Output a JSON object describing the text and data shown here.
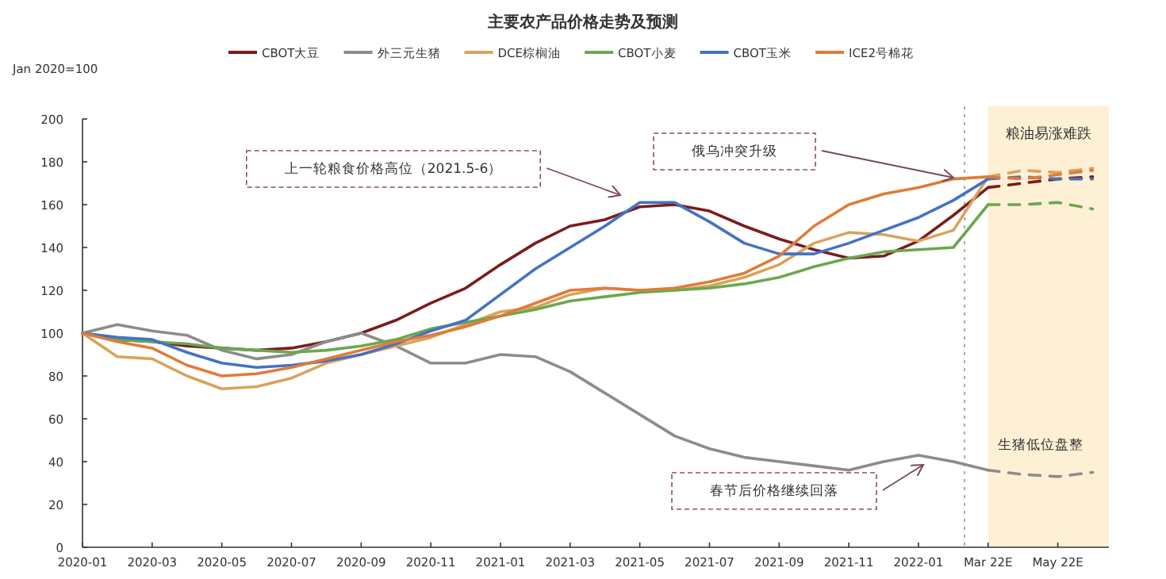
{
  "chart_data": {
    "type": "line",
    "title": "主要农产品价格走势及预测",
    "ylabel": "Jan 2020=100",
    "x": [
      "2020-01",
      "2020-02",
      "2020-03",
      "2020-04",
      "2020-05",
      "2020-06",
      "2020-07",
      "2020-08",
      "2020-09",
      "2020-10",
      "2020-11",
      "2020-12",
      "2021-01",
      "2021-02",
      "2021-03",
      "2021-04",
      "2021-05",
      "2021-06",
      "2021-07",
      "2021-08",
      "2021-09",
      "2021-10",
      "2021-11",
      "2021-12",
      "2022-01",
      "2022-02",
      "2022-03"
    ],
    "series": [
      {
        "name": "CBOT大豆",
        "color": "#7b1c1c",
        "values": [
          100,
          97,
          96,
          94,
          93,
          92,
          93,
          96,
          100,
          106,
          114,
          121,
          132,
          142,
          150,
          153,
          159,
          160,
          157,
          150,
          144,
          139,
          135,
          136,
          143,
          155,
          168
        ]
      },
      {
        "name": "外三元生猪",
        "color": "#8c8c8c",
        "values": [
          100,
          104,
          101,
          99,
          92,
          88,
          90,
          96,
          100,
          94,
          86,
          86,
          90,
          89,
          82,
          72,
          62,
          52,
          46,
          42,
          40,
          38,
          36,
          40,
          43,
          40,
          36
        ]
      },
      {
        "name": "DCE棕榈油",
        "color": "#d9a35a",
        "values": [
          100,
          89,
          88,
          80,
          74,
          75,
          79,
          86,
          90,
          94,
          98,
          104,
          110,
          112,
          118,
          121,
          120,
          120,
          122,
          126,
          132,
          142,
          147,
          146,
          143,
          148,
          173
        ]
      },
      {
        "name": "CBOT小麦",
        "color": "#6aa84f",
        "values": [
          100,
          97,
          96,
          95,
          93,
          92,
          91,
          92,
          94,
          97,
          102,
          105,
          108,
          111,
          115,
          117,
          119,
          120,
          121,
          123,
          126,
          131,
          135,
          138,
          139,
          140,
          160
        ]
      },
      {
        "name": "CBOT玉米",
        "color": "#4472c4",
        "values": [
          100,
          98,
          97,
          91,
          86,
          84,
          85,
          87,
          90,
          95,
          101,
          106,
          118,
          130,
          140,
          150,
          161,
          161,
          152,
          142,
          137,
          137,
          142,
          148,
          154,
          162,
          172
        ]
      },
      {
        "name": "ICE2号棉花",
        "color": "#e07b39",
        "values": [
          100,
          96,
          93,
          85,
          80,
          81,
          84,
          88,
          92,
          96,
          99,
          103,
          108,
          114,
          120,
          121,
          120,
          121,
          124,
          128,
          136,
          150,
          160,
          165,
          168,
          172,
          173
        ]
      },
      {
        "color": "#7b1c1c",
        "line_style": "dashed",
        "x": [
          "2022-03",
          "2022-04",
          "2022-05",
          "2022-06"
        ],
        "values": [
          168,
          170,
          172,
          173
        ]
      },
      {
        "color": "#8c8c8c",
        "line_style": "dashed",
        "x": [
          "2022-03",
          "2022-04",
          "2022-05",
          "2022-06"
        ],
        "values": [
          36,
          34,
          33,
          35
        ]
      },
      {
        "color": "#d9a35a",
        "line_style": "dashed",
        "x": [
          "2022-03",
          "2022-04",
          "2022-05",
          "2022-06"
        ],
        "values": [
          173,
          176,
          175,
          177
        ]
      },
      {
        "color": "#6aa84f",
        "line_style": "dashed",
        "x": [
          "2022-03",
          "2022-04",
          "2022-05",
          "2022-06"
        ],
        "values": [
          160,
          160,
          161,
          158
        ]
      },
      {
        "color": "#4472c4",
        "line_style": "dashed",
        "x": [
          "2022-03",
          "2022-04",
          "2022-05",
          "2022-06"
        ],
        "values": [
          172,
          173,
          172,
          172
        ]
      },
      {
        "color": "#e07b39",
        "line_style": "dashed",
        "x": [
          "2022-03",
          "2022-04",
          "2022-05",
          "2022-06"
        ],
        "values": [
          173,
          172,
          174,
          176
        ]
      }
    ],
    "xlim": [
      "2020-01",
      "2022-06-15"
    ],
    "xticks": [
      "2020-01",
      "2020-03",
      "2020-05",
      "2020-07",
      "2020-09",
      "2020-11",
      "2021-01",
      "2021-03",
      "2021-05",
      "2021-07",
      "2021-09",
      "2021-11",
      "2022-01",
      {
        "value": "2022-03",
        "label": "Mar 22E"
      },
      {
        "value": "2022-05",
        "label": "May 22E"
      }
    ],
    "ylim": [
      0,
      200
    ],
    "yticks": [
      0,
      20,
      40,
      60,
      80,
      100,
      120,
      140,
      160,
      180,
      200
    ],
    "grid": false,
    "legend": "top",
    "line_style": "solid",
    "marker": "none",
    "bands": [
      {
        "axis": "x",
        "from": "2022-03",
        "to": "2022-06-15",
        "label": "粮油易涨难跌",
        "color": "#fdf0d5"
      }
    ],
    "ref_lines": [
      {
        "axis": "x",
        "value": "2022-02-10",
        "color": "#999999",
        "line_style": "dotted"
      }
    ],
    "annotations": [
      "上一轮粮食价格高位（2021.5-6）",
      "俄乌冲突升级",
      "春节后价格继续回落",
      "生猪低位盘整"
    ]
  }
}
